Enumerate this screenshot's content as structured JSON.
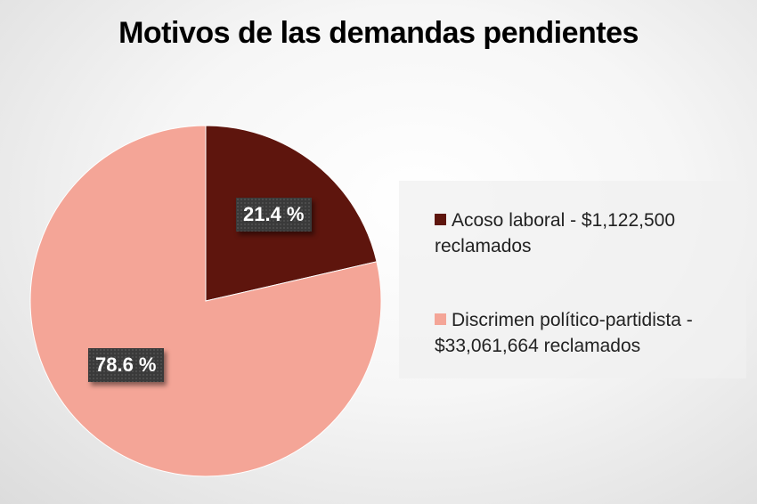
{
  "chart_data": {
    "type": "pie",
    "title": "Motivos de las demandas pendientes",
    "categories": [
      "Acoso laboral - $1,122,500 reclamados",
      "Discrimen político-partidista - $33,061,664 reclamados"
    ],
    "values": [
      21.4,
      78.6
    ],
    "data_labels": [
      "21.4 %",
      "78.6 %"
    ],
    "colors": [
      "#5e150d",
      "#f4a597"
    ],
    "legend_position": "right",
    "start_angle": "top, clockwise"
  }
}
